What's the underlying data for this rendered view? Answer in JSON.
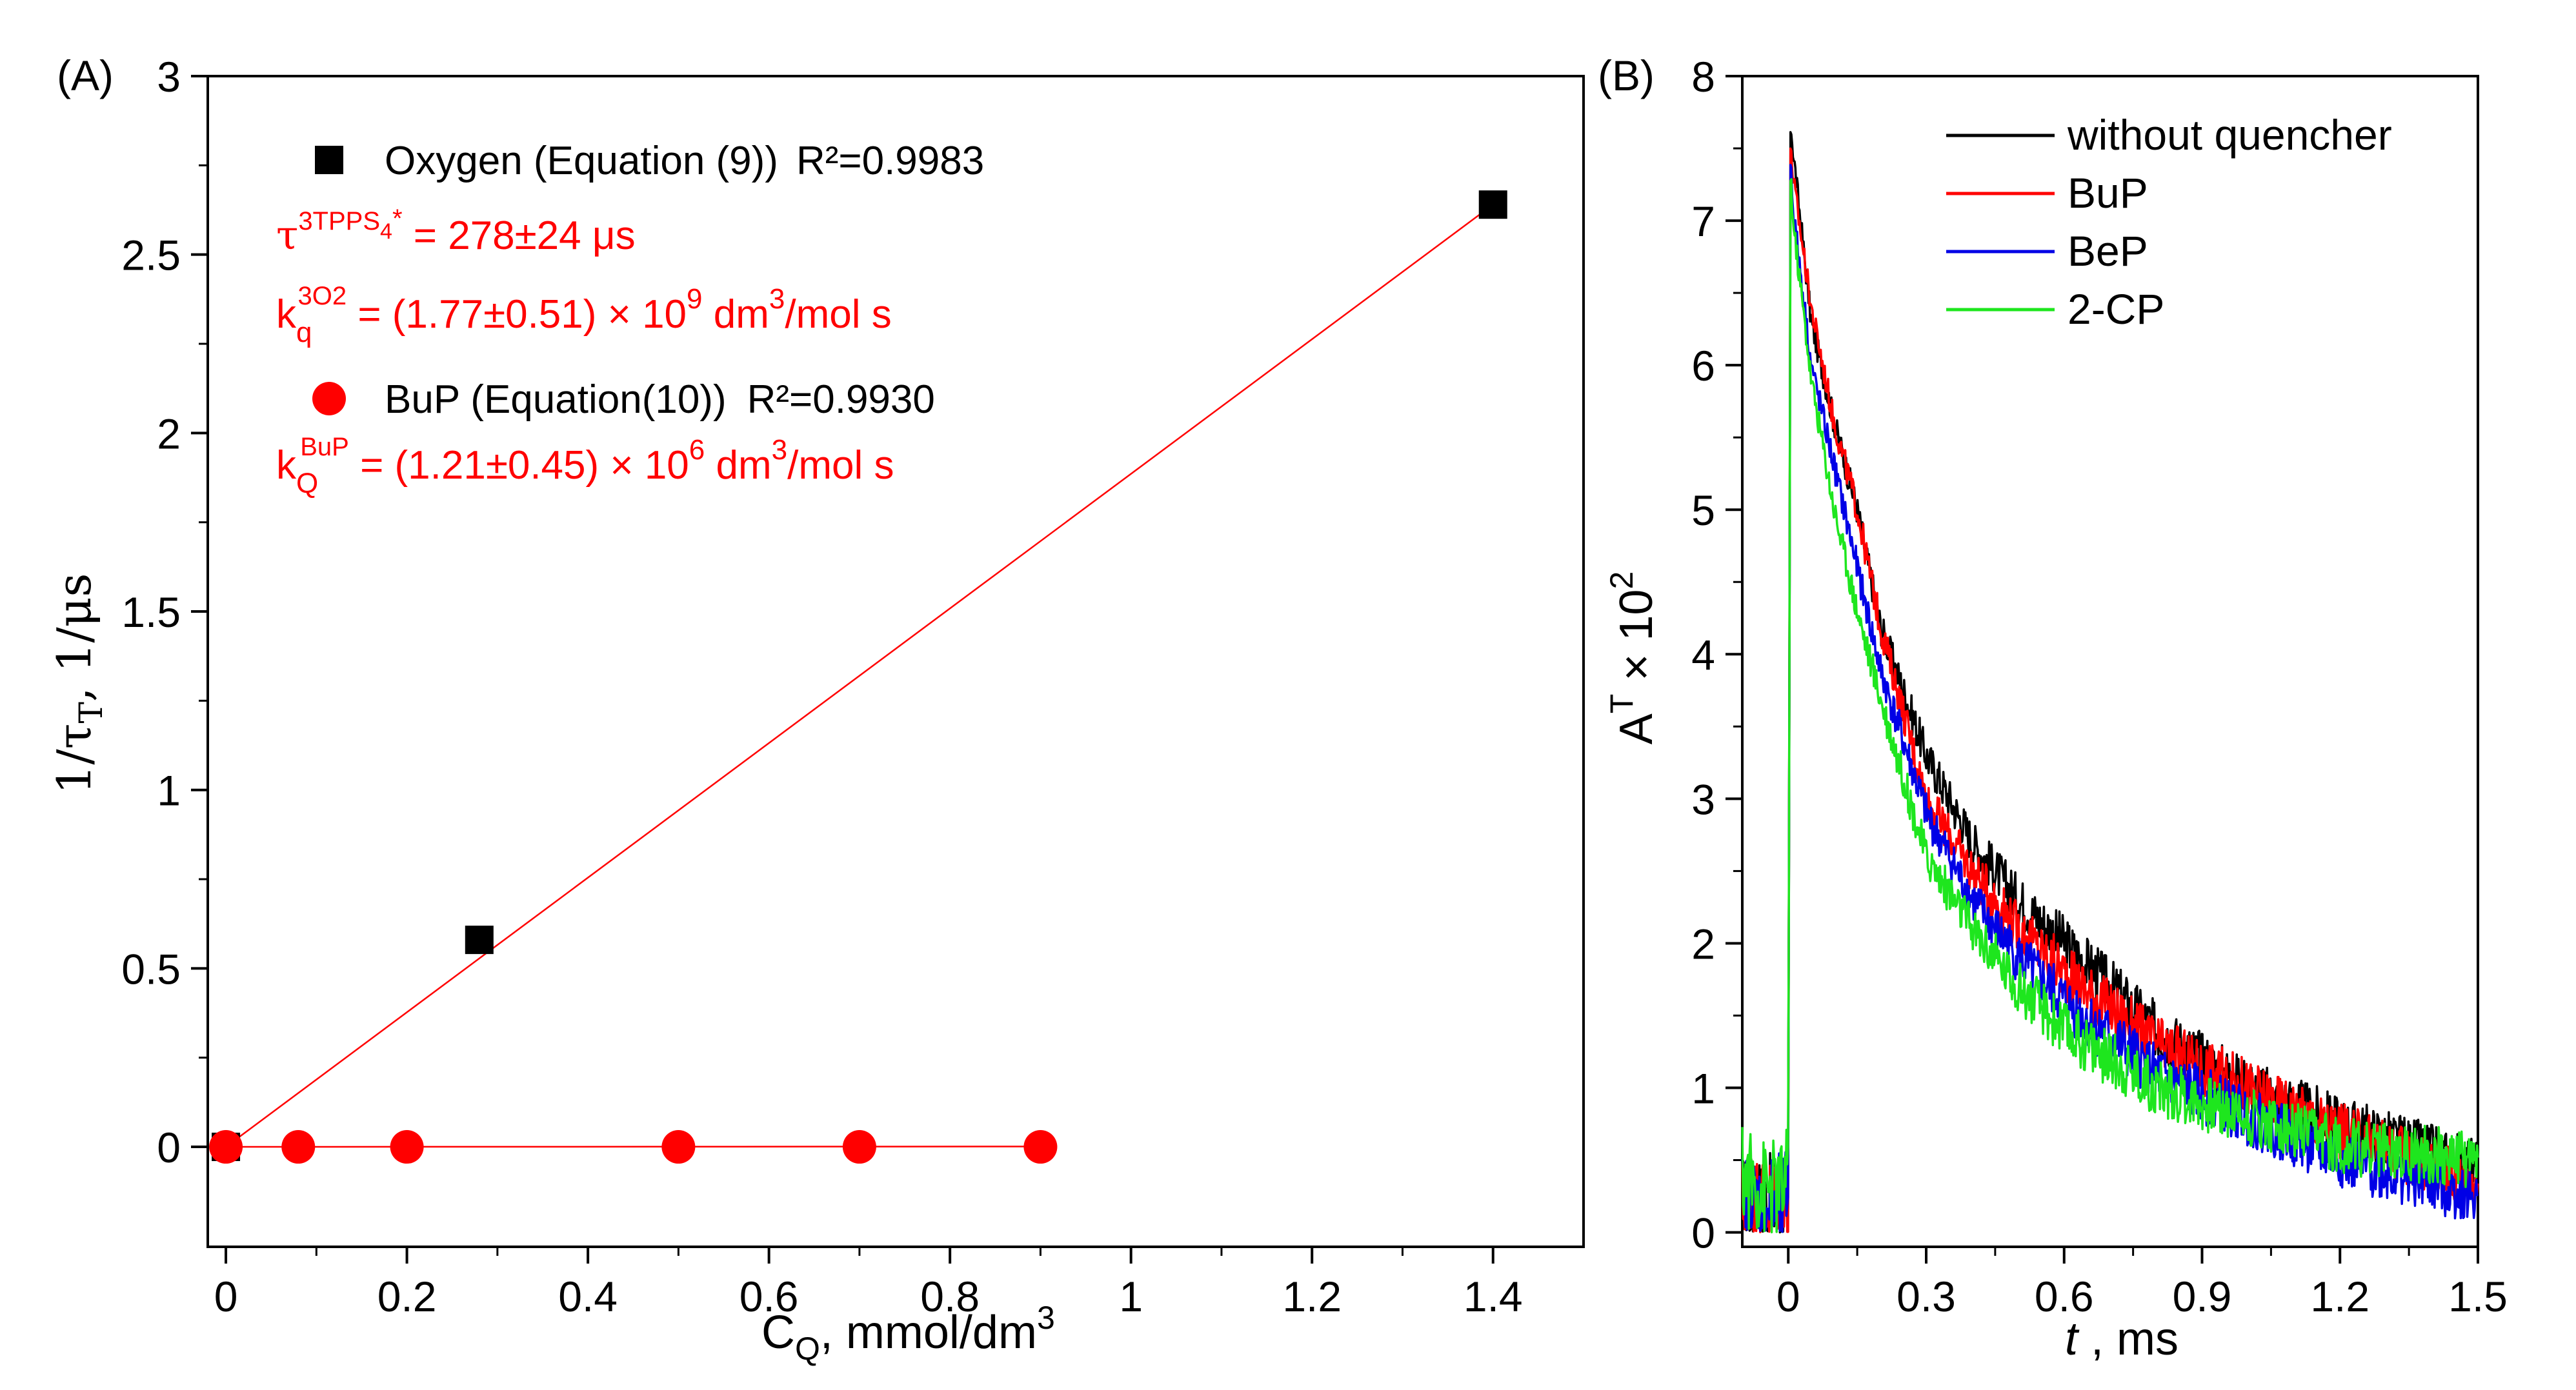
{
  "colors": {
    "black": "#000000",
    "red": "#ff0000",
    "blue": "#0000e6",
    "green": "#1ee61e"
  },
  "chart_data": [
    {
      "panel": "(A)",
      "type": "scatter",
      "xlabel": {
        "main": "C",
        "sub": "Q",
        "rest": ", mmol/dm",
        "sup": "3"
      },
      "ylabel": {
        "main": "1/τ",
        "sub": "T",
        "rest": ", 1/μs"
      },
      "xlim": [
        -0.02,
        1.5
      ],
      "ylim": [
        -0.28,
        3.0
      ],
      "xticks": [
        0,
        0.2,
        0.4,
        0.6,
        0.8,
        1,
        1.2,
        1.4
      ],
      "xtick_labels": [
        "0",
        "0.2",
        "0.4",
        "0.6",
        "0.8",
        "1",
        "1.2",
        "1.4"
      ],
      "yticks": [
        0,
        0.5,
        1,
        1.5,
        2,
        2.5,
        3
      ],
      "ytick_labels": [
        "0",
        "0.5",
        "1",
        "1.5",
        "2",
        "2.5",
        "3"
      ],
      "series": [
        {
          "name": "Oxygen (Equation (9))",
          "marker": "square",
          "color": "#000000",
          "x": [
            0,
            0.28,
            1.4
          ],
          "y": [
            0,
            0.58,
            2.64
          ],
          "fit": {
            "x": [
              0,
              1.4
            ],
            "y": [
              0,
              2.64
            ]
          },
          "r2": "R²=0.9983"
        },
        {
          "name": "BuP (Equation(10))",
          "marker": "circle",
          "color": "#ff0000",
          "x": [
            0,
            0.08,
            0.2,
            0.5,
            0.7,
            0.9
          ],
          "y": [
            0,
            0,
            0,
            0,
            0,
            0
          ],
          "fit": {
            "x": [
              0,
              0.9
            ],
            "y": [
              0,
              0.001
            ]
          },
          "r2": "R²=0.9930"
        }
      ],
      "annotations": {
        "tau_lhs": "τ",
        "tau_sup": "3TPPS",
        "tau_sup_sub": "4",
        "tau_sup_star": "*",
        "tau_rhs": " = 278±24 μs",
        "kq_o2_k": "k",
        "kq_o2_sub": "q",
        "kq_o2_sup": "3O2",
        "kq_o2_rhs": " = (1.77±0.51) × 10",
        "kq_o2_exp": "9",
        "kq_o2_unit": " dm",
        "kq_o2_unit_exp": "3",
        "kq_o2_unit_rest": "/mol s",
        "kq_bup_k": "k",
        "kq_bup_sub": "Q",
        "kq_bup_sup": "BuP",
        "kq_bup_rhs": " = (1.21±0.45) × 10",
        "kq_bup_exp": "6",
        "kq_bup_unit": " dm",
        "kq_bup_unit_exp": "3",
        "kq_bup_unit_rest": "/mol s"
      }
    },
    {
      "panel": "(B)",
      "type": "line",
      "xlabel": {
        "main": "t",
        "rest": " , ms"
      },
      "ylabel": {
        "main": "A",
        "sup": "T",
        "rest": " × 10",
        "sup2": "2"
      },
      "xlim": [
        -0.1,
        1.5
      ],
      "ylim": [
        -0.1,
        8
      ],
      "xticks": [
        0,
        0.3,
        0.6,
        0.9,
        1.2,
        1.5
      ],
      "xtick_labels": [
        "0",
        "0.3",
        "0.6",
        "0.9",
        "1.2",
        "1.5"
      ],
      "yticks": [
        0,
        1,
        2,
        3,
        4,
        5,
        6,
        7,
        8
      ],
      "ytick_labels": [
        "0",
        "1",
        "2",
        "3",
        "4",
        "5",
        "6",
        "7",
        "8"
      ],
      "legend_position": "top-right",
      "series": [
        {
          "name": "without quencher",
          "color": "#000000",
          "x": [
            -0.1,
            -0.05,
            -0.01,
            0,
            0.005,
            0.01,
            0.05,
            0.1,
            0.15,
            0.2,
            0.3,
            0.4,
            0.5,
            0.6,
            0.8,
            1.0,
            1.2,
            1.5
          ],
          "y": [
            0.2,
            0.2,
            0.2,
            0.3,
            7.7,
            7.5,
            6.3,
            5.6,
            5.0,
            4.2,
            3.3,
            2.7,
            2.3,
            2.0,
            1.4,
            1.0,
            0.75,
            0.45
          ]
        },
        {
          "name": "BuP",
          "color": "#ff0000",
          "x": [
            -0.1,
            -0.05,
            -0.01,
            0,
            0.005,
            0.01,
            0.05,
            0.1,
            0.15,
            0.2,
            0.3,
            0.4,
            0.5,
            0.6,
            0.8,
            1.0,
            1.2,
            1.5
          ],
          "y": [
            0.2,
            0.2,
            0.2,
            0.3,
            7.6,
            7.3,
            6.4,
            5.6,
            5.0,
            4.2,
            3.0,
            2.5,
            2.1,
            1.8,
            1.3,
            1.0,
            0.7,
            0.35
          ]
        },
        {
          "name": "BeP",
          "color": "#0000e6",
          "x": [
            -0.1,
            -0.05,
            -0.01,
            0,
            0.005,
            0.01,
            0.05,
            0.1,
            0.15,
            0.2,
            0.3,
            0.4,
            0.5,
            0.6,
            0.8,
            1.0,
            1.2,
            1.5
          ],
          "y": [
            0.2,
            0.2,
            0.2,
            0.3,
            7.5,
            7.1,
            6.0,
            5.3,
            4.6,
            3.9,
            2.9,
            2.3,
            1.9,
            1.6,
            1.1,
            0.8,
            0.5,
            0.25
          ]
        },
        {
          "name": "2-CP",
          "color": "#1ee61e",
          "x": [
            -0.1,
            -0.05,
            -0.01,
            0,
            0.005,
            0.01,
            0.05,
            0.1,
            0.15,
            0.2,
            0.3,
            0.4,
            0.5,
            0.6,
            0.8,
            1.0,
            1.2,
            1.5
          ],
          "y": [
            0.4,
            0.3,
            0.3,
            0.4,
            7.4,
            7.0,
            5.9,
            5.0,
            4.3,
            3.7,
            2.6,
            2.1,
            1.7,
            1.4,
            1.0,
            0.8,
            0.6,
            0.5
          ]
        }
      ]
    }
  ]
}
